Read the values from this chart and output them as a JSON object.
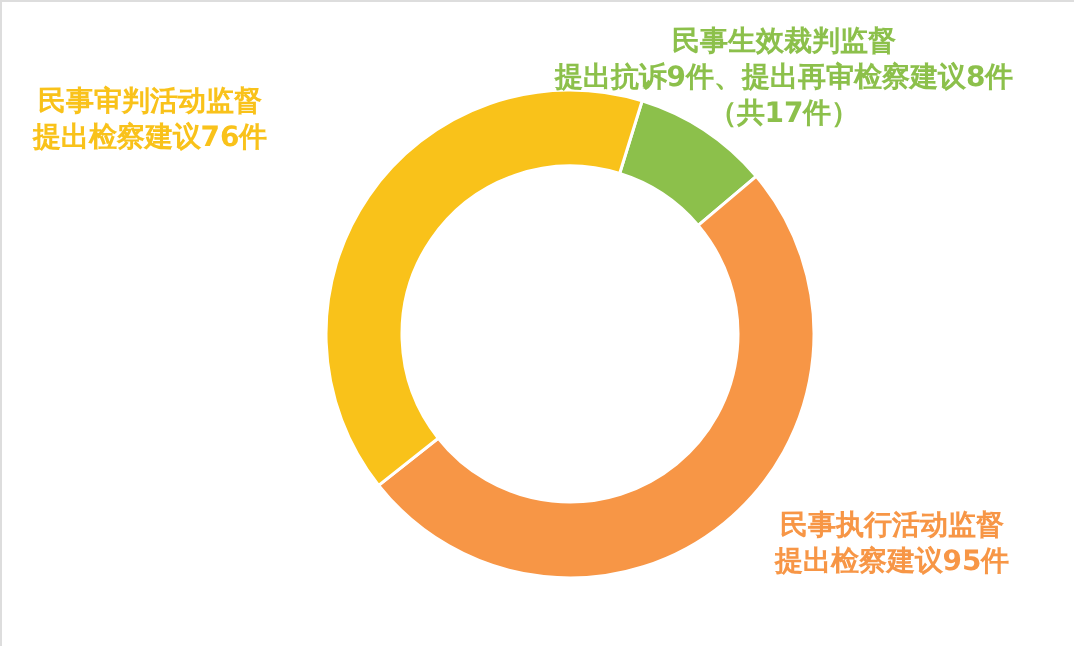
{
  "chart_data": {
    "type": "donut",
    "categories": [
      "民事生效裁判监督提出抗诉9件、提出再审检察建议8件（共17件）",
      "民事执行活动监督提出检察建议95件",
      "民事审判活动监督提出检察建议76件"
    ],
    "values": [
      17,
      95,
      76
    ],
    "colors": [
      "#8cc04b",
      "#f79646",
      "#f9c21a"
    ]
  }
}
